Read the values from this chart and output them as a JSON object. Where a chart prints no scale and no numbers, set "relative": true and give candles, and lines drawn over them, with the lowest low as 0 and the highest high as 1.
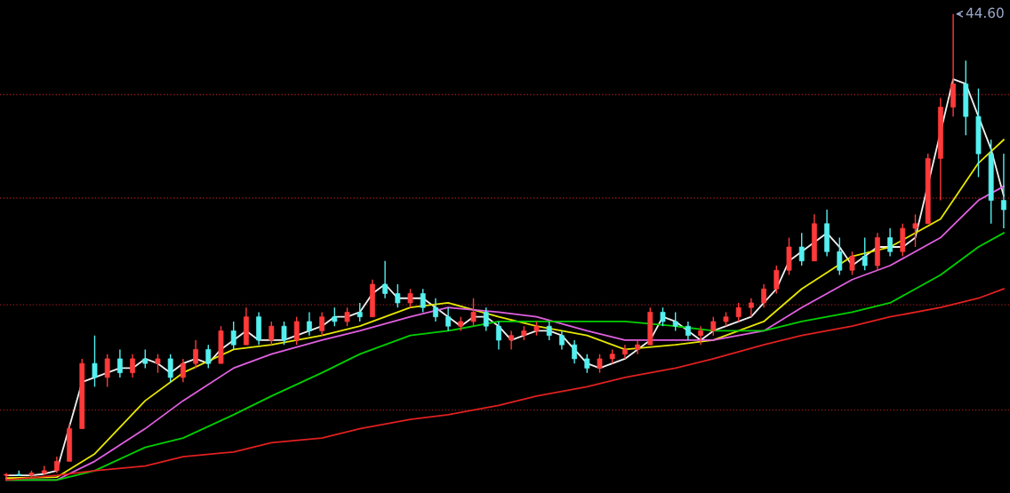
{
  "chart_data": {
    "type": "candlestick",
    "relative": true,
    "categories": [
      null,
      null,
      null,
      null,
      null,
      null,
      null,
      null,
      null,
      null,
      null,
      null,
      null,
      null,
      null,
      null,
      null,
      null,
      null,
      null,
      null,
      null,
      null,
      null,
      null,
      null,
      null,
      null,
      null,
      null,
      null,
      null,
      null,
      null,
      null,
      null,
      null,
      null,
      null,
      null,
      null,
      null,
      null,
      null,
      null,
      null,
      null,
      null,
      null,
      null,
      null,
      null,
      null,
      null,
      null,
      null,
      null,
      null,
      null,
      null,
      null,
      null,
      null,
      null,
      null,
      null,
      null,
      null,
      null,
      null,
      null,
      null,
      null,
      null,
      null,
      null,
      null,
      null,
      null,
      null
    ],
    "ohlc": [
      [
        0.01,
        0.015,
        0,
        0.012
      ],
      [
        0.012,
        0.02,
        0.008,
        0.01
      ],
      [
        0.01,
        0.02,
        0.005,
        0.015
      ],
      [
        0.015,
        0.03,
        0.01,
        0.02
      ],
      [
        0.02,
        0.05,
        0.015,
        0.04
      ],
      [
        0.04,
        0.12,
        0.04,
        0.11
      ],
      [
        0.11,
        0.26,
        0.11,
        0.25
      ],
      [
        0.25,
        0.31,
        0.2,
        0.22
      ],
      [
        0.22,
        0.27,
        0.2,
        0.26
      ],
      [
        0.26,
        0.28,
        0.22,
        0.23
      ],
      [
        0.23,
        0.27,
        0.22,
        0.26
      ],
      [
        0.26,
        0.28,
        0.24,
        0.25
      ],
      [
        0.25,
        0.27,
        0.23,
        0.26
      ],
      [
        0.26,
        0.27,
        0.21,
        0.22
      ],
      [
        0.22,
        0.26,
        0.21,
        0.25
      ],
      [
        0.25,
        0.3,
        0.24,
        0.28
      ],
      [
        0.28,
        0.29,
        0.24,
        0.25
      ],
      [
        0.25,
        0.33,
        0.25,
        0.32
      ],
      [
        0.32,
        0.34,
        0.28,
        0.29
      ],
      [
        0.29,
        0.37,
        0.29,
        0.35
      ],
      [
        0.35,
        0.36,
        0.29,
        0.3
      ],
      [
        0.3,
        0.34,
        0.29,
        0.33
      ],
      [
        0.33,
        0.34,
        0.29,
        0.3
      ],
      [
        0.3,
        0.35,
        0.29,
        0.34
      ],
      [
        0.34,
        0.36,
        0.31,
        0.32
      ],
      [
        0.32,
        0.36,
        0.31,
        0.35
      ],
      [
        0.35,
        0.37,
        0.33,
        0.34
      ],
      [
        0.34,
        0.37,
        0.33,
        0.36
      ],
      [
        0.36,
        0.38,
        0.34,
        0.35
      ],
      [
        0.35,
        0.43,
        0.35,
        0.42
      ],
      [
        0.42,
        0.47,
        0.39,
        0.4
      ],
      [
        0.4,
        0.42,
        0.37,
        0.38
      ],
      [
        0.38,
        0.41,
        0.37,
        0.4
      ],
      [
        0.4,
        0.41,
        0.36,
        0.37
      ],
      [
        0.37,
        0.39,
        0.34,
        0.35
      ],
      [
        0.35,
        0.37,
        0.32,
        0.33
      ],
      [
        0.33,
        0.35,
        0.32,
        0.34
      ],
      [
        0.34,
        0.39,
        0.33,
        0.36
      ],
      [
        0.36,
        0.37,
        0.32,
        0.33
      ],
      [
        0.33,
        0.34,
        0.28,
        0.3
      ],
      [
        0.3,
        0.32,
        0.28,
        0.31
      ],
      [
        0.31,
        0.33,
        0.3,
        0.32
      ],
      [
        0.32,
        0.34,
        0.31,
        0.33
      ],
      [
        0.33,
        0.34,
        0.3,
        0.31
      ],
      [
        0.31,
        0.32,
        0.28,
        0.29
      ],
      [
        0.29,
        0.3,
        0.25,
        0.26
      ],
      [
        0.26,
        0.27,
        0.23,
        0.24
      ],
      [
        0.24,
        0.27,
        0.23,
        0.26
      ],
      [
        0.26,
        0.28,
        0.25,
        0.27
      ],
      [
        0.27,
        0.29,
        0.26,
        0.28
      ],
      [
        0.28,
        0.3,
        0.27,
        0.29
      ],
      [
        0.29,
        0.37,
        0.29,
        0.36
      ],
      [
        0.36,
        0.37,
        0.33,
        0.34
      ],
      [
        0.34,
        0.36,
        0.32,
        0.33
      ],
      [
        0.33,
        0.34,
        0.3,
        0.31
      ],
      [
        0.31,
        0.33,
        0.29,
        0.32
      ],
      [
        0.32,
        0.35,
        0.31,
        0.34
      ],
      [
        0.34,
        0.36,
        0.33,
        0.35
      ],
      [
        0.35,
        0.38,
        0.34,
        0.37
      ],
      [
        0.37,
        0.39,
        0.35,
        0.38
      ],
      [
        0.38,
        0.42,
        0.37,
        0.41
      ],
      [
        0.41,
        0.46,
        0.4,
        0.45
      ],
      [
        0.45,
        0.52,
        0.44,
        0.5
      ],
      [
        0.5,
        0.53,
        0.46,
        0.47
      ],
      [
        0.47,
        0.57,
        0.47,
        0.55
      ],
      [
        0.55,
        0.58,
        0.48,
        0.49
      ],
      [
        0.49,
        0.52,
        0.44,
        0.45
      ],
      [
        0.45,
        0.49,
        0.44,
        0.48
      ],
      [
        0.48,
        0.52,
        0.45,
        0.46
      ],
      [
        0.46,
        0.53,
        0.45,
        0.52
      ],
      [
        0.52,
        0.54,
        0.48,
        0.49
      ],
      [
        0.49,
        0.55,
        0.48,
        0.54
      ],
      [
        0.54,
        0.57,
        0.5,
        0.55
      ],
      [
        0.55,
        0.7,
        0.55,
        0.69
      ],
      [
        0.69,
        0.82,
        0.6,
        0.8
      ],
      [
        0.8,
        1.0,
        0.78,
        0.85
      ],
      [
        0.85,
        0.9,
        0.74,
        0.78
      ],
      [
        0.78,
        0.84,
        0.65,
        0.7
      ],
      [
        0.7,
        0.73,
        0.55,
        0.6
      ],
      [
        0.6,
        0.7,
        0.54,
        0.58
      ]
    ],
    "colors": [
      "#ff3a3a",
      "#54f0f0",
      "#ff3a3a",
      "#ff3a3a",
      "#ff3a3a",
      "#ff3a3a",
      "#ff3a3a",
      "#54f0f0",
      "#ff3a3a",
      "#54f0f0",
      "#ff3a3a",
      "#54f0f0",
      "#ff3a3a",
      "#54f0f0",
      "#ff3a3a",
      "#ff3a3a",
      "#54f0f0",
      "#ff3a3a",
      "#54f0f0",
      "#ff3a3a",
      "#54f0f0",
      "#ff3a3a",
      "#54f0f0",
      "#ff3a3a",
      "#54f0f0",
      "#ff3a3a",
      "#54f0f0",
      "#ff3a3a",
      "#54f0f0",
      "#ff3a3a",
      "#54f0f0",
      "#54f0f0",
      "#ff3a3a",
      "#54f0f0",
      "#54f0f0",
      "#54f0f0",
      "#ff3a3a",
      "#ff3a3a",
      "#54f0f0",
      "#54f0f0",
      "#ff3a3a",
      "#ff3a3a",
      "#ff3a3a",
      "#54f0f0",
      "#54f0f0",
      "#54f0f0",
      "#54f0f0",
      "#ff3a3a",
      "#ff3a3a",
      "#ff3a3a",
      "#ff3a3a",
      "#ff3a3a",
      "#54f0f0",
      "#54f0f0",
      "#54f0f0",
      "#ff3a3a",
      "#ff3a3a",
      "#ff3a3a",
      "#ff3a3a",
      "#ff3a3a",
      "#ff3a3a",
      "#ff3a3a",
      "#ff3a3a",
      "#54f0f0",
      "#ff3a3a",
      "#54f0f0",
      "#54f0f0",
      "#ff3a3a",
      "#54f0f0",
      "#ff3a3a",
      "#54f0f0",
      "#ff3a3a",
      "#ff3a3a",
      "#ff3a3a",
      "#ff3a3a",
      "#ff3a3a",
      "#54f0f0",
      "#54f0f0",
      "#54f0f0",
      "#54f0f0"
    ],
    "series": [
      {
        "type": "line",
        "color": "#f0f0f0",
        "values": [
          0.01,
          0.01,
          0.01,
          0.013,
          0.02,
          null,
          0.21,
          0.22,
          0.23,
          0.24,
          0.24,
          0.26,
          0.25,
          0.23,
          0.25,
          0.26,
          0.25,
          0.28,
          0.3,
          0.32,
          0.3,
          0.3,
          0.3,
          0.31,
          0.32,
          0.33,
          0.35,
          0.35,
          0.36,
          0.4,
          0.42,
          0.39,
          0.39,
          0.39,
          0.37,
          0.35,
          0.33,
          0.35,
          0.35,
          0.33,
          0.3,
          0.31,
          0.32,
          0.32,
          0.31,
          0.28,
          0.25,
          0.24,
          0.25,
          0.26,
          0.28,
          0.3,
          0.35,
          0.34,
          0.32,
          0.3,
          0.32,
          0.33,
          0.34,
          0.35,
          0.38,
          0.41,
          0.47,
          0.49,
          0.51,
          0.53,
          0.5,
          0.46,
          0.48,
          0.5,
          0.5,
          0.5,
          0.52,
          null,
          null,
          0.86,
          0.85,
          0.78,
          0.71,
          0.61
        ]
      },
      {
        "type": "line",
        "color": "#e6e600",
        "values": [
          0.004,
          null,
          null,
          null,
          0.006,
          null,
          null,
          0.056,
          null,
          null,
          null,
          0.17,
          null,
          null,
          0.23,
          null,
          null,
          null,
          0.28,
          null,
          null,
          0.29,
          null,
          null,
          null,
          0.31,
          null,
          null,
          0.33,
          null,
          null,
          null,
          0.37,
          null,
          null,
          0.38,
          null,
          null,
          null,
          0.35,
          null,
          null,
          0.33,
          null,
          null,
          null,
          0.31,
          null,
          null,
          0.28,
          null,
          null,
          null,
          0.29,
          null,
          null,
          0.3,
          null,
          null,
          null,
          0.34,
          null,
          null,
          0.41,
          null,
          null,
          null,
          0.48,
          null,
          null,
          0.5,
          null,
          null,
          null,
          0.56,
          null,
          null,
          0.68,
          null,
          0.73
        ]
      },
      {
        "type": "line",
        "color": "#e060e0",
        "values": [
          0,
          null,
          null,
          null,
          0,
          null,
          null,
          0.04,
          null,
          null,
          null,
          0.11,
          null,
          null,
          0.17,
          null,
          null,
          null,
          0.24,
          null,
          null,
          0.27,
          null,
          null,
          null,
          0.3,
          null,
          null,
          0.32,
          null,
          null,
          null,
          0.35,
          null,
          null,
          0.37,
          null,
          null,
          null,
          0.36,
          null,
          null,
          0.35,
          null,
          null,
          null,
          0.32,
          null,
          null,
          0.3,
          null,
          null,
          null,
          0.3,
          null,
          null,
          0.3,
          null,
          null,
          null,
          0.32,
          null,
          null,
          0.37,
          null,
          null,
          null,
          0.43,
          null,
          null,
          0.46,
          null,
          null,
          null,
          0.52,
          null,
          null,
          0.6,
          null,
          0.63
        ]
      },
      {
        "type": "line",
        "color": "#00d000",
        "values": [
          0,
          null,
          null,
          null,
          0,
          null,
          null,
          0.02,
          null,
          null,
          null,
          0.07,
          null,
          null,
          0.09,
          null,
          null,
          null,
          0.14,
          null,
          null,
          0.18,
          null,
          null,
          null,
          0.23,
          null,
          null,
          0.27,
          null,
          null,
          null,
          0.31,
          null,
          null,
          0.32,
          null,
          null,
          null,
          0.34,
          null,
          null,
          0.34,
          null,
          null,
          null,
          0.34,
          null,
          null,
          0.34,
          null,
          null,
          null,
          0.33,
          null,
          null,
          0.32,
          null,
          null,
          null,
          0.32,
          null,
          null,
          0.34,
          null,
          null,
          null,
          0.36,
          null,
          null,
          0.38,
          null,
          null,
          null,
          0.44,
          null,
          null,
          0.5,
          null,
          0.53
        ]
      },
      {
        "type": "line",
        "color": "#e02020",
        "values": [
          0,
          null,
          null,
          null,
          0.01,
          null,
          null,
          0.02,
          null,
          null,
          null,
          0.03,
          null,
          null,
          0.05,
          null,
          null,
          null,
          0.06,
          null,
          null,
          0.08,
          null,
          null,
          null,
          0.09,
          null,
          null,
          0.11,
          null,
          null,
          null,
          0.13,
          null,
          null,
          0.14,
          null,
          null,
          null,
          0.16,
          null,
          null,
          0.18,
          null,
          null,
          null,
          0.2,
          null,
          null,
          0.22,
          null,
          null,
          null,
          0.24,
          null,
          null,
          0.26,
          null,
          null,
          null,
          0.29,
          null,
          null,
          0.31,
          null,
          null,
          null,
          0.33,
          null,
          null,
          0.35,
          null,
          null,
          null,
          0.37,
          null,
          null,
          0.39,
          null,
          0.41
        ]
      }
    ],
    "ref_lines": [
      {
        "axis": "y",
        "value": 0.827,
        "color": "#8a1a1a",
        "line_style": "dotted"
      },
      {
        "axis": "y",
        "value": 0.605,
        "color": "#8a1a1a",
        "line_style": "dotted"
      },
      {
        "axis": "y",
        "value": 0.376,
        "color": "#8a1a1a",
        "line_style": "dotted"
      },
      {
        "axis": "y",
        "value": 0.15,
        "color": "#8a1a1a",
        "line_style": "dotted"
      }
    ],
    "annotations": [
      "44.60"
    ]
  }
}
